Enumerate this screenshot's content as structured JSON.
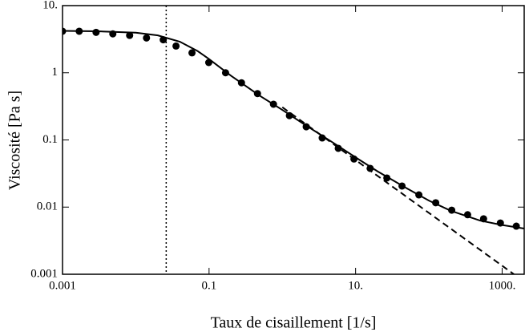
{
  "chart_data": {
    "type": "scatter",
    "xlabel": "Taux de cisaillement [1/s]",
    "ylabel": "Viscosité [Pa s]",
    "xscale": "log",
    "yscale": "log",
    "xlim": [
      0.001,
      2000
    ],
    "ylim": [
      0.001,
      10
    ],
    "xticks": [
      0.001,
      0.1,
      {
        "value": 10,
        "label": "10."
      },
      {
        "value": 1000,
        "label": "1000."
      }
    ],
    "yticks": [
      0.001,
      0.01,
      0.1,
      1,
      {
        "value": 10,
        "label": "10."
      }
    ],
    "vline": 0.026,
    "series": [
      {
        "style": "markers",
        "color": "#000000",
        "x": [
          0.001,
          0.00169,
          0.00287,
          0.00486,
          0.00824,
          0.014,
          0.0237,
          0.0354,
          0.0585,
          0.099,
          0.168,
          0.277,
          0.458,
          0.757,
          1.25,
          2.12,
          3.5,
          5.8,
          9.5,
          15.8,
          26.7,
          43,
          73,
          124,
          205,
          338,
          558,
          946,
          1560
        ],
        "values": [
          4.15,
          4.15,
          4.0,
          3.8,
          3.6,
          3.3,
          3.1,
          2.5,
          1.98,
          1.42,
          1.0,
          0.71,
          0.49,
          0.34,
          0.23,
          0.157,
          0.107,
          0.075,
          0.052,
          0.0377,
          0.0271,
          0.0206,
          0.0152,
          0.0116,
          0.009,
          0.0077,
          0.0067,
          0.0058,
          0.0052
        ]
      },
      {
        "style": "solid",
        "color": "#000000",
        "x": [
          0.001,
          0.003,
          0.01,
          0.02,
          0.04,
          0.07,
          0.1,
          0.2,
          0.5,
          1,
          2,
          5,
          10,
          20,
          50,
          100,
          200,
          500,
          1000,
          2000
        ],
        "values": [
          4.2,
          4.15,
          3.95,
          3.6,
          2.9,
          2.1,
          1.6,
          0.9,
          0.45,
          0.28,
          0.17,
          0.09,
          0.055,
          0.034,
          0.019,
          0.0125,
          0.0088,
          0.0063,
          0.0054,
          0.0048
        ]
      },
      {
        "style": "dashed",
        "color": "#000000",
        "x": [
          1,
          1450
        ],
        "values": [
          0.307,
          0.001
        ]
      }
    ]
  }
}
